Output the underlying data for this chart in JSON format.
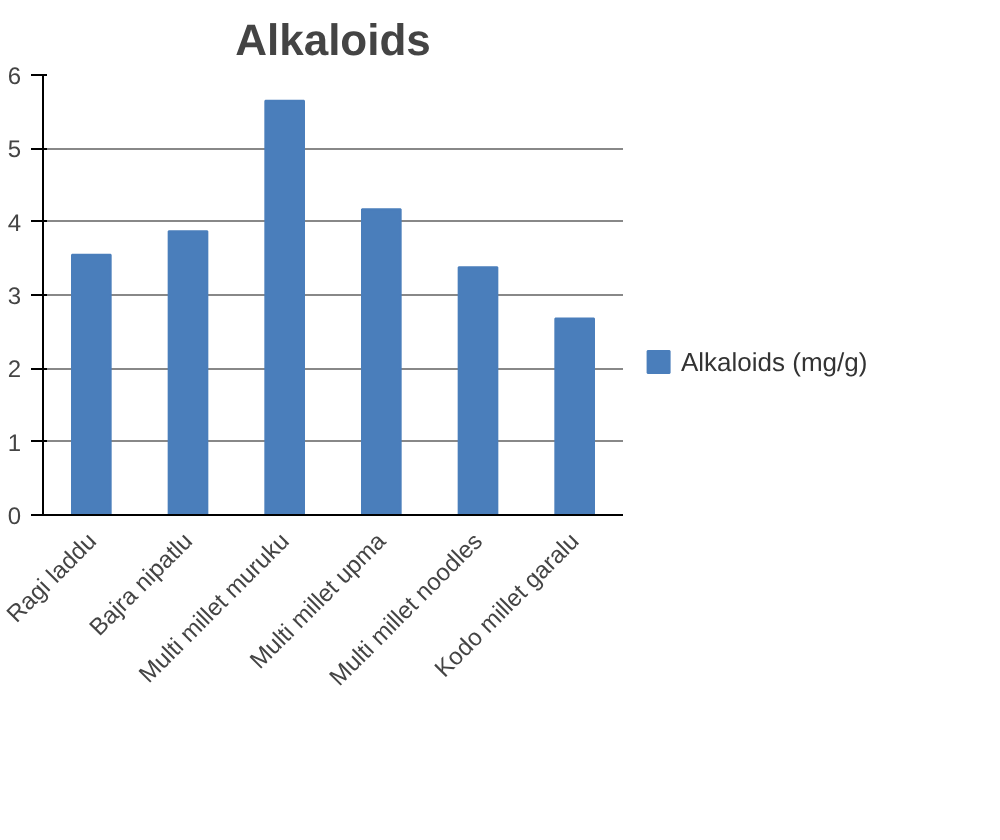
{
  "chart_data": {
    "type": "bar",
    "title": "Alkaloids",
    "categories": [
      "Ragi laddu",
      "Bajra nipatlu",
      "Multi millet muruku",
      "Multi millet upma",
      "Multi millet noodles",
      "Kodo millet garalu"
    ],
    "series": [
      {
        "name": "Alkaloids (mg/g)",
        "color": "#4a7ebb",
        "values": [
          3.55,
          3.87,
          5.65,
          4.17,
          3.38,
          2.68
        ]
      }
    ],
    "ylim": [
      0,
      6
    ],
    "yticks": [
      0,
      1,
      2,
      3,
      4,
      5,
      6
    ],
    "grid": "y",
    "legend": "right"
  }
}
